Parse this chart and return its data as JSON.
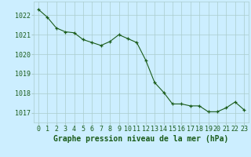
{
  "x": [
    0,
    1,
    2,
    3,
    4,
    5,
    6,
    7,
    8,
    9,
    10,
    11,
    12,
    13,
    14,
    15,
    16,
    17,
    18,
    19,
    20,
    21,
    22,
    23
  ],
  "y": [
    1022.3,
    1021.9,
    1021.35,
    1021.15,
    1021.1,
    1020.75,
    1020.6,
    1020.45,
    1020.65,
    1021.0,
    1020.8,
    1020.6,
    1019.7,
    1018.55,
    1018.05,
    1017.45,
    1017.45,
    1017.35,
    1017.35,
    1017.05,
    1017.05,
    1017.25,
    1017.55,
    1017.15
  ],
  "line_color": "#1a5c1a",
  "marker_color": "#1a5c1a",
  "bg_color": "#cceeff",
  "grid_color": "#aacccc",
  "xlabel": "Graphe pression niveau de la mer (hPa)",
  "xlabel_color": "#1a5c1a",
  "ytick_labels": [
    "1017",
    "1018",
    "1019",
    "1020",
    "1021",
    "1022"
  ],
  "ylim": [
    1016.5,
    1022.7
  ],
  "xlim": [
    -0.5,
    23.5
  ],
  "xtick_labels": [
    "0",
    "1",
    "2",
    "3",
    "4",
    "5",
    "6",
    "7",
    "8",
    "9",
    "10",
    "11",
    "12",
    "13",
    "14",
    "15",
    "16",
    "17",
    "18",
    "19",
    "20",
    "21",
    "22",
    "23"
  ],
  "tick_color": "#1a5c1a",
  "font_size_xlabel": 7.0,
  "font_size_ticks": 6.0
}
